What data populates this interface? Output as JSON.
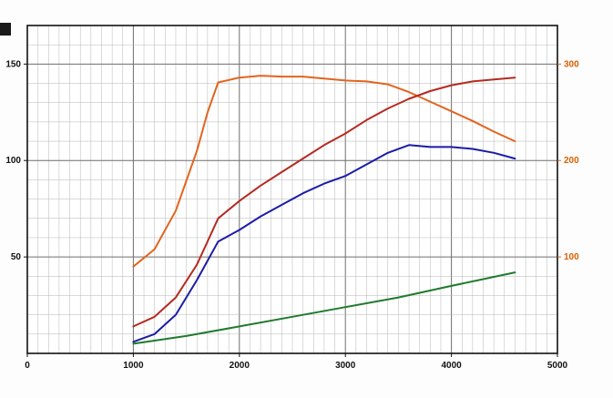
{
  "chart_data": {
    "type": "line",
    "title": "",
    "xlabel": "",
    "ylabel": "",
    "grid": true,
    "legend_position": "none",
    "x_axis": {
      "min": 0,
      "max": 5000,
      "ticks": [
        0,
        1000,
        2000,
        3000,
        4000,
        5000
      ],
      "minor_step": 100,
      "label_color": "#111111"
    },
    "y_left_axis": {
      "min": 0,
      "max": 170,
      "ticks": [
        50,
        100,
        150
      ],
      "minor_step": 10,
      "major_step": 50,
      "label_color": "#111111"
    },
    "y_right_axis": {
      "min": 0,
      "max": 340,
      "ticks": [
        100,
        200,
        300
      ],
      "label_color": "#d95f02"
    },
    "series": [
      {
        "name": "orange-curve",
        "axis": "right",
        "color": "#e2641e",
        "x": [
          1000,
          1200,
          1400,
          1600,
          1700,
          1800,
          2000,
          2200,
          2400,
          2600,
          2800,
          3000,
          3200,
          3400,
          3600,
          3800,
          4000,
          4200,
          4400,
          4600
        ],
        "y": [
          90,
          108,
          148,
          210,
          250,
          281,
          286,
          288,
          287,
          287,
          285,
          283,
          282,
          279,
          271,
          261,
          251,
          241,
          230,
          220
        ]
      },
      {
        "name": "red-curve",
        "axis": "left",
        "color": "#b52a21",
        "x": [
          1000,
          1200,
          1400,
          1600,
          1800,
          2000,
          2200,
          2400,
          2600,
          2800,
          3000,
          3200,
          3400,
          3600,
          3800,
          4000,
          4200,
          4400,
          4600
        ],
        "y": [
          14,
          19,
          29,
          46,
          70,
          79,
          87,
          94,
          101,
          108,
          114,
          121,
          127,
          132,
          136,
          139,
          141,
          142,
          143
        ]
      },
      {
        "name": "blue-curve",
        "axis": "left",
        "color": "#1c1ca6",
        "x": [
          1000,
          1200,
          1400,
          1600,
          1800,
          2000,
          2200,
          2400,
          2600,
          2800,
          3000,
          3200,
          3400,
          3600,
          3800,
          4000,
          4200,
          4400,
          4600
        ],
        "y": [
          6,
          10,
          20,
          38,
          58,
          64,
          71,
          77,
          83,
          88,
          92,
          98,
          104,
          108,
          107,
          107,
          106,
          104,
          101
        ]
      },
      {
        "name": "green-curve",
        "axis": "left",
        "color": "#1f7a2d",
        "x": [
          1000,
          1500,
          2000,
          2500,
          3000,
          3500,
          4000,
          4600
        ],
        "y": [
          5,
          9,
          14,
          19,
          24,
          29,
          35,
          42
        ]
      }
    ],
    "plot": {
      "background": "#ffffff",
      "border_color": "#111111",
      "grid_minor_color": "#b5b5b5",
      "grid_major_color": "#6e6e6e"
    }
  }
}
